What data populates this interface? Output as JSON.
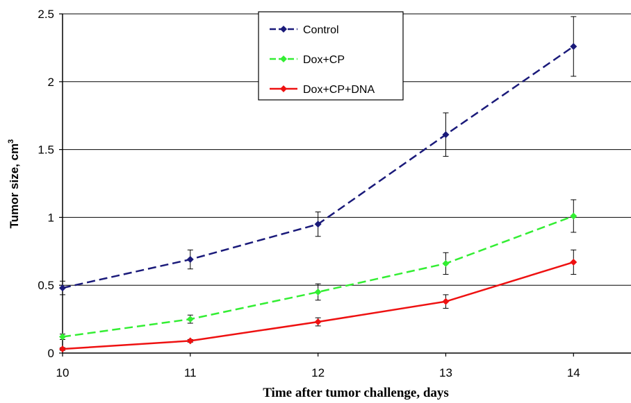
{
  "chart_data": {
    "type": "line",
    "xlabel": "Time after tumor challenge, days",
    "ylabel": "Tumor size, cm",
    "ylabel_superscript": "3",
    "x": [
      10,
      11,
      12,
      13,
      14
    ],
    "x_ticks": [
      "10",
      "11",
      "12",
      "13",
      "14"
    ],
    "y_ticks": [
      "0",
      "0.5",
      "1",
      "1.5",
      "2",
      "2.5"
    ],
    "xlim": [
      10,
      14.45
    ],
    "ylim": [
      0,
      2.5
    ],
    "grid": "horizontal",
    "legend_position": "top-center",
    "series": [
      {
        "name": "Control",
        "color": "#1a1a7a",
        "line_style": "dashed",
        "marker": "diamond",
        "values": [
          0.48,
          0.69,
          0.95,
          1.61,
          2.26
        ],
        "errors": [
          0.05,
          0.07,
          0.09,
          0.16,
          0.22
        ]
      },
      {
        "name": "Dox+CP",
        "color": "#33ee33",
        "line_style": "dashed",
        "marker": "diamond",
        "values": [
          0.12,
          0.25,
          0.45,
          0.66,
          1.01
        ],
        "errors": [
          0.02,
          0.03,
          0.06,
          0.08,
          0.12
        ]
      },
      {
        "name": "Dox+CP+DNA",
        "color": "#ee1111",
        "line_style": "solid",
        "marker": "diamond",
        "values": [
          0.03,
          0.09,
          0.23,
          0.38,
          0.67
        ],
        "errors": [
          0.01,
          0.01,
          0.03,
          0.05,
          0.09
        ]
      }
    ]
  }
}
